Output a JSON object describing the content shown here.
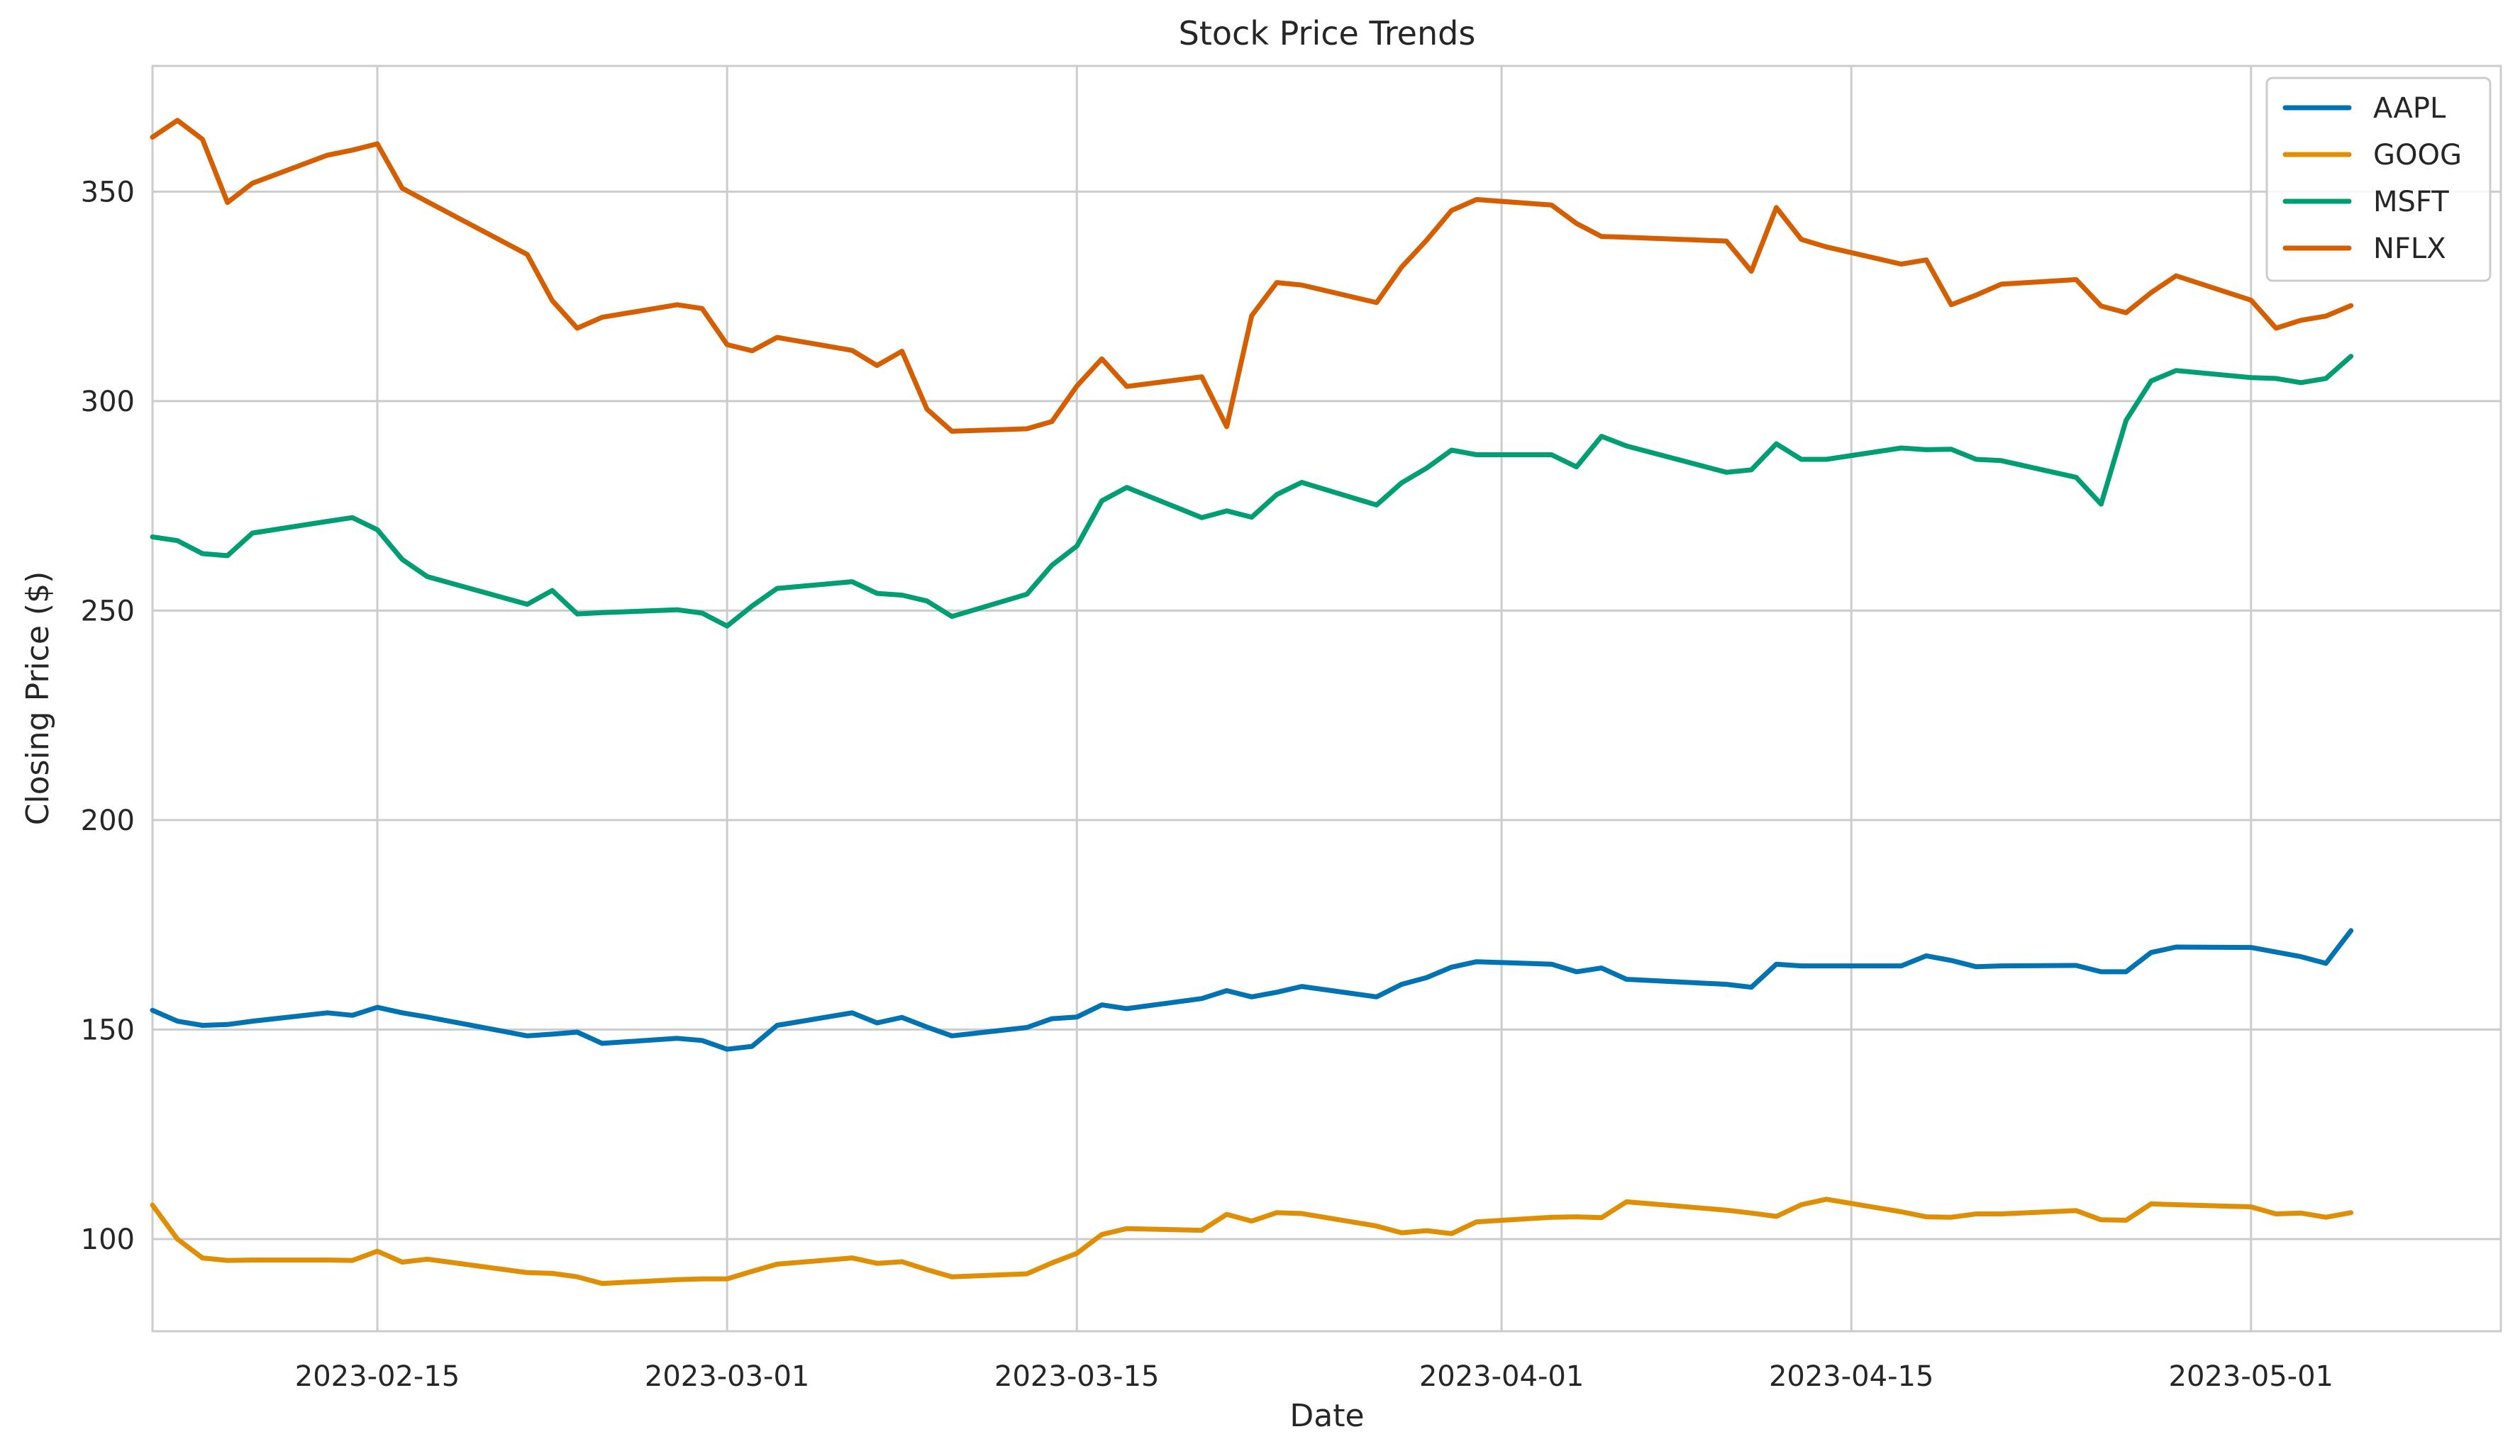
{
  "chart_data": {
    "type": "line",
    "title": "Stock Price Trends",
    "xlabel": "Date",
    "ylabel": "Closing Price ($)",
    "grid": true,
    "legend_position": "top-right",
    "x_range": [
      "2023-02-06",
      "2023-05-11"
    ],
    "ylim": [
      78,
      380
    ],
    "x_ticks": [
      "2023-02-15",
      "2023-03-01",
      "2023-03-15",
      "2023-04-01",
      "2023-04-15",
      "2023-05-01"
    ],
    "y_ticks": [
      100,
      150,
      200,
      250,
      300,
      350
    ],
    "x": [
      "2023-02-06",
      "2023-02-07",
      "2023-02-08",
      "2023-02-09",
      "2023-02-10",
      "2023-02-13",
      "2023-02-14",
      "2023-02-15",
      "2023-02-16",
      "2023-02-17",
      "2023-02-21",
      "2023-02-22",
      "2023-02-23",
      "2023-02-24",
      "2023-02-27",
      "2023-02-28",
      "2023-03-01",
      "2023-03-02",
      "2023-03-03",
      "2023-03-06",
      "2023-03-07",
      "2023-03-08",
      "2023-03-09",
      "2023-03-10",
      "2023-03-13",
      "2023-03-14",
      "2023-03-15",
      "2023-03-16",
      "2023-03-17",
      "2023-03-20",
      "2023-03-21",
      "2023-03-22",
      "2023-03-23",
      "2023-03-24",
      "2023-03-27",
      "2023-03-28",
      "2023-03-29",
      "2023-03-30",
      "2023-03-31",
      "2023-04-03",
      "2023-04-04",
      "2023-04-05",
      "2023-04-06",
      "2023-04-10",
      "2023-04-11",
      "2023-04-12",
      "2023-04-13",
      "2023-04-14",
      "2023-04-17",
      "2023-04-18",
      "2023-04-19",
      "2023-04-20",
      "2023-04-21",
      "2023-04-24",
      "2023-04-25",
      "2023-04-26",
      "2023-04-27",
      "2023-04-28",
      "2023-05-01",
      "2023-05-02",
      "2023-05-03",
      "2023-05-04",
      "2023-05-05"
    ],
    "series": [
      {
        "name": "AAPL",
        "color": "#0173b2",
        "values": [
          154.6,
          152.0,
          151.0,
          151.2,
          152.0,
          154.0,
          153.4,
          155.3,
          154.0,
          153.0,
          148.5,
          148.9,
          149.4,
          146.7,
          147.9,
          147.4,
          145.3,
          146.0,
          151.0,
          154.0,
          151.6,
          152.9,
          150.6,
          148.5,
          150.5,
          152.6,
          153.0,
          155.9,
          155.0,
          157.4,
          159.3,
          157.8,
          158.9,
          160.3,
          157.8,
          160.8,
          162.4,
          164.9,
          166.2,
          165.6,
          163.8,
          164.7,
          162.0,
          160.8,
          160.1,
          165.6,
          165.2,
          165.2,
          165.2,
          167.6,
          166.5,
          165.0,
          165.2,
          165.3,
          163.8,
          163.8,
          168.4,
          169.7,
          169.6,
          168.5,
          167.4,
          165.8,
          173.6
        ]
      },
      {
        "name": "GOOG",
        "color": "#de8f05",
        "values": [
          108.1,
          100.0,
          95.5,
          94.9,
          95.0,
          95.0,
          94.9,
          97.1,
          94.5,
          95.2,
          92.0,
          91.8,
          91.0,
          89.4,
          90.3,
          90.5,
          90.5,
          92.3,
          94.0,
          95.5,
          94.2,
          94.6,
          92.7,
          91.0,
          91.7,
          94.3,
          96.6,
          101.1,
          102.5,
          102.1,
          105.9,
          104.3,
          106.3,
          106.1,
          103.1,
          101.5,
          102.0,
          101.3,
          104.1,
          105.2,
          105.3,
          105.1,
          108.9,
          106.9,
          106.2,
          105.4,
          108.2,
          109.5,
          106.5,
          105.3,
          105.2,
          106.0,
          106.0,
          106.8,
          104.6,
          104.5,
          108.4,
          108.2,
          107.7,
          106.0,
          106.2,
          105.2,
          106.3
        ]
      },
      {
        "name": "MSFT",
        "color": "#029e73",
        "values": [
          267.6,
          266.7,
          263.6,
          263.1,
          268.5,
          271.3,
          272.2,
          269.3,
          262.2,
          258.1,
          251.5,
          254.8,
          249.2,
          249.5,
          250.2,
          249.4,
          246.3,
          251.1,
          255.3,
          256.9,
          254.1,
          253.7,
          252.3,
          248.6,
          253.9,
          260.8,
          265.4,
          276.2,
          279.4,
          272.2,
          273.8,
          272.3,
          277.7,
          280.6,
          275.2,
          280.5,
          284.0,
          288.3,
          287.2,
          287.2,
          284.3,
          291.6,
          289.3,
          283.0,
          283.6,
          289.8,
          286.1,
          286.1,
          288.8,
          288.4,
          288.5,
          286.1,
          285.8,
          281.8,
          275.4,
          295.4,
          304.8,
          307.3,
          305.6,
          305.4,
          304.4,
          305.4,
          310.7
        ]
      },
      {
        "name": "NFLX",
        "color": "#d55e00",
        "values": [
          363.0,
          367.0,
          362.5,
          347.4,
          352.0,
          358.7,
          359.9,
          361.4,
          350.8,
          347.6,
          335.0,
          324.0,
          317.4,
          320.0,
          323.0,
          322.1,
          313.5,
          312.0,
          315.2,
          312.1,
          308.5,
          311.9,
          298.1,
          292.8,
          293.4,
          295.1,
          303.6,
          310.1,
          303.5,
          305.8,
          293.9,
          320.4,
          328.3,
          327.7,
          323.5,
          332.0,
          338.4,
          345.5,
          348.1,
          346.8,
          342.4,
          339.3,
          339.1,
          338.2,
          331.0,
          346.2,
          338.6,
          336.8,
          332.7,
          333.7,
          323.0,
          325.3,
          327.9,
          329.0,
          322.7,
          321.1,
          325.9,
          329.9,
          324.1,
          317.4,
          319.3,
          320.3,
          322.8
        ]
      }
    ]
  }
}
